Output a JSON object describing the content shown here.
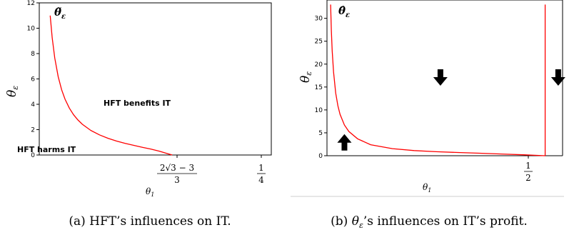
{
  "chart_data": [
    {
      "type": "line",
      "ylabel": "θ",
      "ylabel_sub": "ε",
      "xlabel": "θ",
      "xlabel_sub": "1",
      "xlim": [
        0,
        0.27
      ],
      "ylim": [
        0,
        12
      ],
      "yticks": [
        0,
        2,
        4,
        6,
        8,
        10,
        12
      ],
      "xtick_labels": [
        {
          "x": 0.1547,
          "num": "2√3 − 3",
          "den": "3"
        },
        {
          "x": 0.25,
          "num": "1",
          "den": "4"
        }
      ],
      "curve_label": "θ̃",
      "curve_label_sub": "ε",
      "annotations": [
        "HFT benefits IT",
        "HFT harms IT"
      ],
      "series": [
        {
          "color": "#ff0000",
          "x": [
            0.0127,
            0.015,
            0.018,
            0.022,
            0.026,
            0.03,
            0.035,
            0.04,
            0.045,
            0.05,
            0.06,
            0.07,
            0.08,
            0.09,
            0.1,
            0.11,
            0.12,
            0.13,
            0.14,
            0.15,
            0.1547
          ],
          "y": [
            11.0,
            9.25,
            7.65,
            6.18,
            5.15,
            4.4,
            3.7,
            3.17,
            2.76,
            2.43,
            1.94,
            1.59,
            1.32,
            1.1,
            0.92,
            0.76,
            0.61,
            0.47,
            0.3,
            0.09,
            0.0
          ]
        }
      ]
    },
    {
      "type": "line",
      "ylabel": "θ",
      "ylabel_sub": "ε",
      "xlabel": "θ",
      "xlabel_sub": "1",
      "xlim": [
        0,
        0.54
      ],
      "ylim": [
        0,
        34
      ],
      "yticks": [
        0,
        5,
        10,
        15,
        20,
        25,
        30
      ],
      "xtick_labels": [
        {
          "x": 0.5,
          "num": "1",
          "den": "2"
        }
      ],
      "curve_label": "θ̂",
      "curve_label_sub": "ε",
      "arrows": [
        {
          "x": 0.04,
          "y": 3,
          "direction": "up"
        },
        {
          "x": 0.26,
          "y": 17,
          "direction": "down"
        },
        {
          "x": 0.53,
          "y": 17,
          "direction": "down"
        }
      ],
      "series": [
        {
          "color": "#ff0000",
          "x": [
            0.0083,
            0.01,
            0.012,
            0.015,
            0.02,
            0.025,
            0.03,
            0.04,
            0.05,
            0.07,
            0.1,
            0.15,
            0.2,
            0.25,
            0.3,
            0.35,
            0.4,
            0.45,
            0.5
          ],
          "y": [
            33.0,
            27.4,
            22.9,
            18.3,
            13.7,
            10.9,
            9.05,
            6.7,
            5.3,
            3.7,
            2.4,
            1.55,
            1.12,
            0.88,
            0.7,
            0.54,
            0.38,
            0.2,
            0.0
          ]
        },
        {
          "color": "#ff0000",
          "x": [
            0.5,
            0.5
          ],
          "y": [
            0,
            33.0
          ]
        }
      ]
    }
  ],
  "captions": {
    "a": "(a) HFT’s influences on IT.",
    "b_prefix": "(b) ",
    "b_var": "θ",
    "b_sub": "ε",
    "b_suffix": "’s influences on IT’s profit."
  }
}
